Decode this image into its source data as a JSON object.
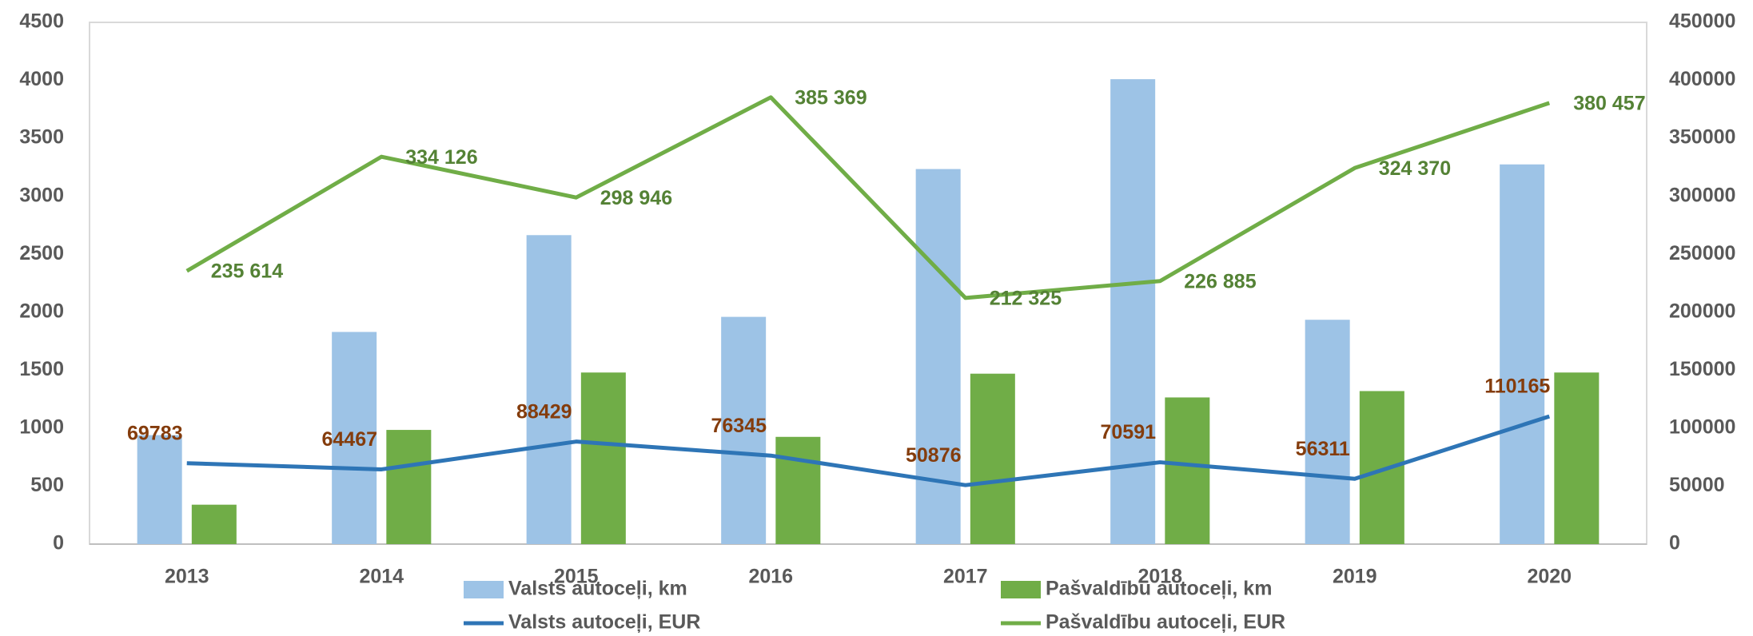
{
  "chart_data": {
    "type": "bar-line",
    "categories": [
      "2013",
      "2014",
      "2015",
      "2016",
      "2017",
      "2018",
      "2019",
      "2020"
    ],
    "series": [
      {
        "name": "Valsts autoceļi, km",
        "type": "bar",
        "color": "#9dc3e6",
        "values": [
          940,
          1830,
          2665,
          1960,
          3235,
          4010,
          1935,
          3275
        ]
      },
      {
        "name": "Pašvaldību autoceļi, km",
        "type": "bar",
        "color": "#70ad47",
        "values": [
          340,
          985,
          1480,
          925,
          1470,
          1265,
          1320,
          1480
        ]
      },
      {
        "name": "Valsts autoceļi, EUR",
        "type": "line",
        "axis": "y2",
        "color": "#2e75b6",
        "label_color": "#843c0c",
        "values": [
          69783,
          64467,
          88429,
          76345,
          50876,
          70591,
          56311,
          110165
        ]
      },
      {
        "name": "Pašvaldību autoceļi, EUR",
        "type": "line",
        "axis": "y2",
        "color": "#70ad47",
        "label_color": "#548235",
        "values": [
          235614,
          334126,
          298946,
          385369,
          212325,
          226885,
          324370,
          380457
        ],
        "value_labels": [
          "235 614",
          "334 126",
          "298 946",
          "385 369",
          "212 325",
          "226 885",
          "324 370",
          "380 457"
        ]
      }
    ],
    "ylim": [
      0,
      4500
    ],
    "yticks": [
      0,
      500,
      1000,
      1500,
      2000,
      2500,
      3000,
      3500,
      4000,
      4500
    ],
    "y2lim": [
      0,
      450000
    ],
    "y2ticks": [
      0,
      50000,
      100000,
      150000,
      200000,
      250000,
      300000,
      350000,
      400000,
      450000
    ],
    "legend": "bottom"
  }
}
